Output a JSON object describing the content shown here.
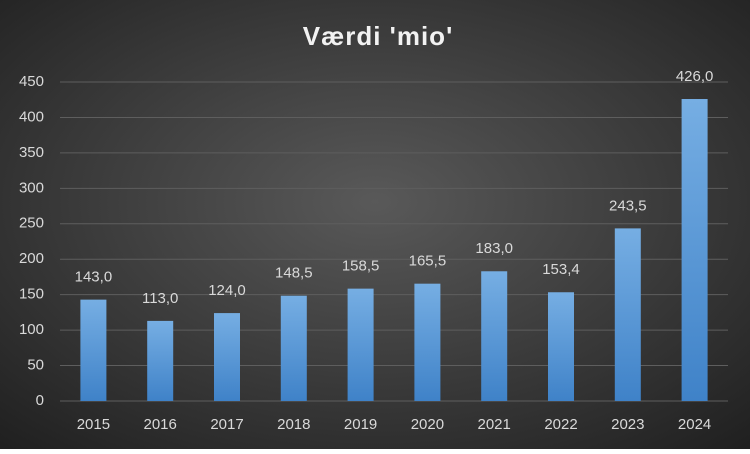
{
  "chart_data": {
    "type": "bar",
    "title": "Værdi 'mio'",
    "categories": [
      "2015",
      "2016",
      "2017",
      "2018",
      "2019",
      "2020",
      "2021",
      "2022",
      "2023",
      "2024"
    ],
    "values": [
      143.0,
      113.0,
      124.0,
      148.5,
      158.5,
      165.5,
      183.0,
      153.4,
      243.5,
      426.0
    ],
    "value_labels": [
      "143,0",
      "113,0",
      "124,0",
      "148,5",
      "158,5",
      "165,5",
      "183,0",
      "153,4",
      "243,5",
      "426,0"
    ],
    "color": "#5b9bd5",
    "ylim": [
      0,
      450
    ],
    "yticks": [
      0,
      50,
      100,
      150,
      200,
      250,
      300,
      350,
      400,
      450
    ],
    "grid": true
  }
}
